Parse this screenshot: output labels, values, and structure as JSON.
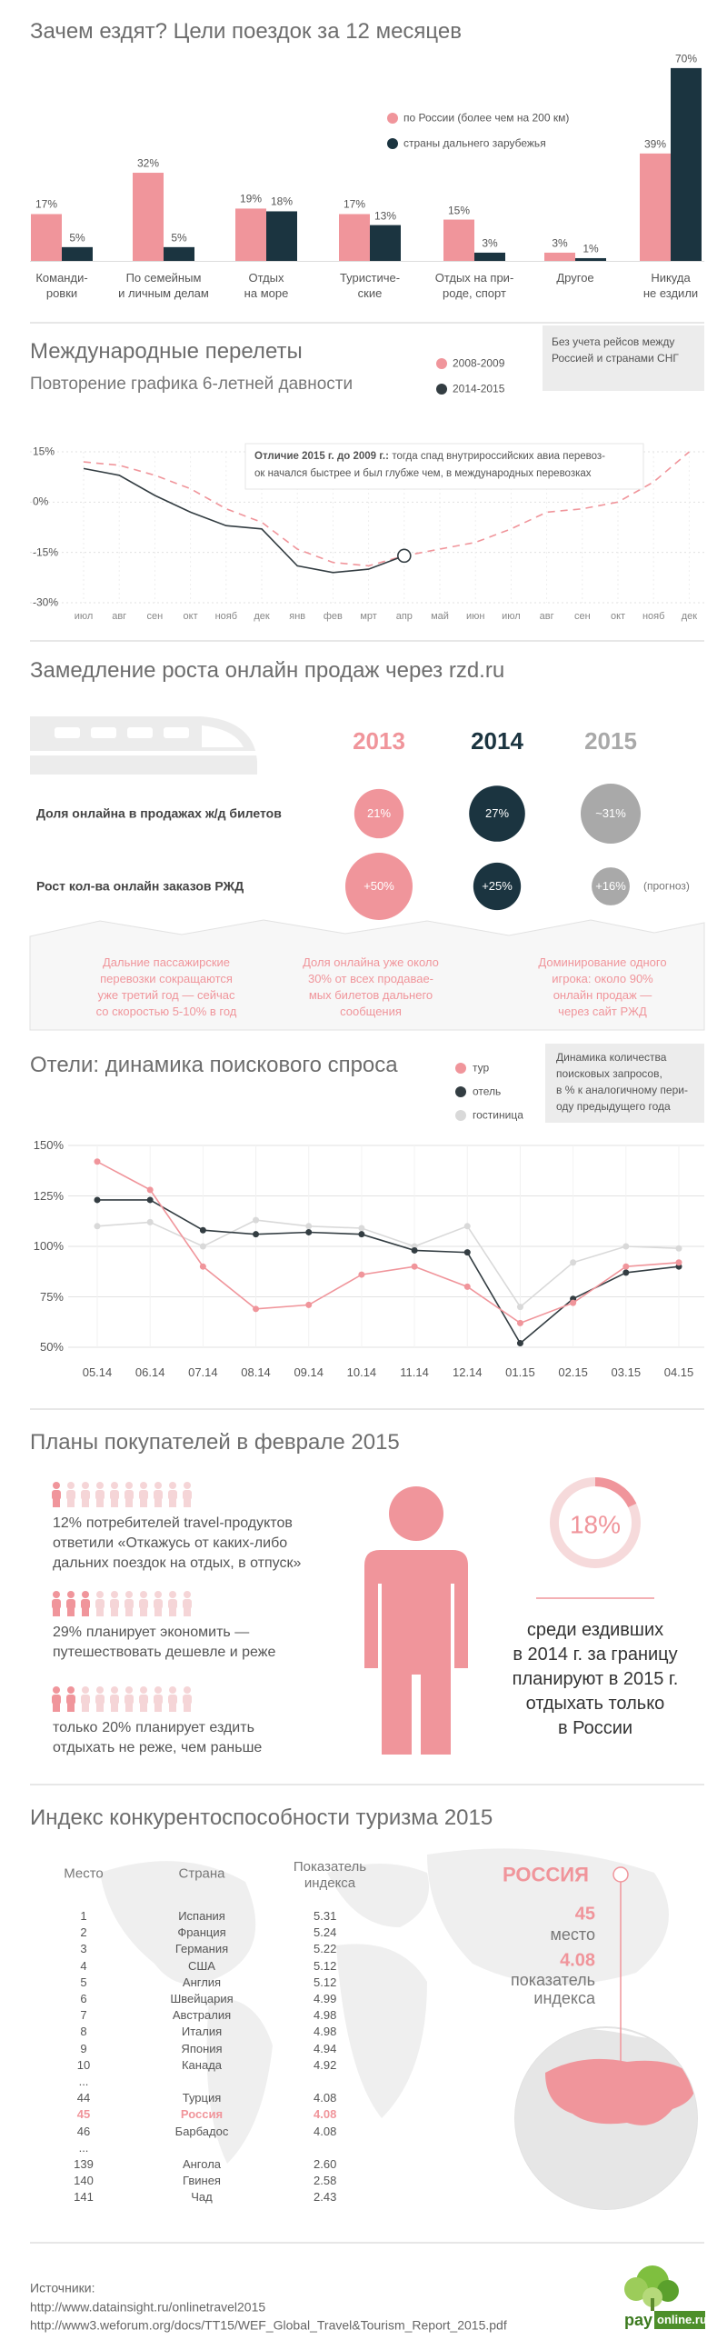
{
  "chart_data": [
    {
      "type": "bar",
      "title": "Зачем ездят? Цели поездок за 12 месяцев",
      "categories": [
        "Команди-\nровки",
        "По семейным\nи личным делам",
        "Отдых\nна море",
        "Туристиче-\nские",
        "Отдых на при-\nроде, спорт",
        "Другое",
        "Никуда\nне ездили"
      ],
      "series": [
        {
          "name": "по России (более чем на 200 км)",
          "color": "#f0959b",
          "values": [
            17,
            32,
            19,
            17,
            15,
            3,
            39
          ],
          "value_labels": [
            "17%",
            "32%",
            "19%",
            "17%",
            "15%",
            "3%",
            "39%"
          ]
        },
        {
          "name": "страны дальнего зарубежья",
          "color": "#1b3440",
          "values": [
            5,
            5,
            18,
            13,
            3,
            1,
            70
          ],
          "value_labels": [
            "5%",
            "5%",
            "18%",
            "13%",
            "3%",
            "1%",
            "70%"
          ]
        }
      ]
    },
    {
      "type": "line",
      "title": "Международные перелеты",
      "subtitle": "Повторение графика 6-летней давности",
      "note": "Без учета рейсов между\nРоссией и странами СНГ",
      "annotation_title": "Отличие 2015 г. до 2009 г.:",
      "annotation": "тогда спад внутрироссийских авиа перевоз-\nок начался быстрее и был глубже чем, в международных перевозках",
      "categories": [
        "июл",
        "авг",
        "сен",
        "окт",
        "нояб",
        "дек",
        "янв",
        "фев",
        "мрт",
        "апр",
        "май",
        "июн",
        "июл",
        "авг",
        "сен",
        "окт",
        "нояб",
        "дек"
      ],
      "series": [
        {
          "name": "2008-2009",
          "color": "#f0959b",
          "dashed": true,
          "values": [
            12,
            11,
            8,
            4,
            -2,
            -6,
            -14,
            -18,
            -19,
            -16,
            -14,
            -12,
            -8,
            -3,
            -2,
            0,
            6,
            15
          ]
        },
        {
          "name": "2014-2015",
          "color": "#333d42",
          "end_marker": true,
          "values": [
            10,
            8,
            2,
            -3,
            -7,
            -8,
            -19,
            -21,
            -20,
            -16,
            null,
            null,
            null,
            null,
            null,
            null,
            null,
            null
          ]
        }
      ],
      "ylim": [
        -30,
        15
      ],
      "yticks": [
        {
          "value": 15,
          "label": "15%"
        },
        {
          "value": 0,
          "label": "0%"
        },
        {
          "value": -15,
          "label": "-15%"
        },
        {
          "value": -30,
          "label": "-30%"
        }
      ],
      "grid": true
    },
    {
      "type": "bubble",
      "title": "Замедление роста онлайн продаж через rzd.ru",
      "categories": [
        "2013",
        "2014",
        "2015"
      ],
      "category_colors": [
        "#f0959b",
        "#1b3440",
        "#a9a9a9"
      ],
      "series": [
        {
          "name": "Доля онлайна в продажах ж/д билетов",
          "values": [
            21,
            27,
            31
          ],
          "value_labels": [
            "21%",
            "27%",
            "~31%"
          ]
        },
        {
          "name": "Рост кол-ва онлайн заказов РЖД",
          "values": [
            50,
            25,
            16
          ],
          "value_labels": [
            "+50%",
            "+25%",
            "+16%"
          ]
        }
      ],
      "forecast_label": "(прогноз)",
      "notes": [
        "Дальние пассажирские\nперевозки сокращаются\nуже третий год — сейчас\nсо скоростью 5-10% в год",
        "Доля онлайна уже около\n30% от всех продавае-\nмых билетов дальнего\nсообщения",
        "Доминирование одного\nигрока: около 90%\nонлайн продаж —\nчерез сайт РЖД"
      ]
    },
    {
      "type": "line",
      "title": "Отели: динамика поискового спроса",
      "note": "Динамика количества\nпоисковых запросов,\nв % к аналогичному пери-\nоду предыдущего года",
      "categories": [
        "05.14",
        "06.14",
        "07.14",
        "08.14",
        "09.14",
        "10.14",
        "11.14",
        "12.14",
        "01.15",
        "02.15",
        "03.15",
        "04.15"
      ],
      "series": [
        {
          "name": "тур",
          "color": "#f0959b",
          "values": [
            142,
            128,
            90,
            69,
            71,
            86,
            90,
            80,
            62,
            72,
            90,
            92
          ]
        },
        {
          "name": "отель",
          "color": "#333d42",
          "values": [
            123,
            123,
            108,
            106,
            107,
            106,
            98,
            97,
            52,
            74,
            87,
            90
          ]
        },
        {
          "name": "гостиница",
          "color": "#d9d9d9",
          "values": [
            110,
            112,
            100,
            113,
            110,
            109,
            100,
            110,
            70,
            92,
            100,
            99
          ]
        }
      ],
      "ylim": [
        50,
        150
      ],
      "yticks": [
        {
          "value": 150,
          "label": "150%"
        },
        {
          "value": 125,
          "label": "125%"
        },
        {
          "value": 100,
          "label": "100%"
        },
        {
          "value": 75,
          "label": "75%"
        },
        {
          "value": 50,
          "label": "50%"
        }
      ],
      "grid": true,
      "markers": true
    }
  ],
  "plans": {
    "title": "Планы покупателей в феврале 2015",
    "items": [
      {
        "value": 12,
        "value_label": "12%",
        "text": "потребителей travel-продуктов\nответили «Откажусь от каких-либо\nдальних поездок на отдых, в отпуск»"
      },
      {
        "value": 29,
        "value_label": "29%",
        "text": "планирует экономить —\nпутешествовать дешевле и реже"
      },
      {
        "prefix": "только",
        "value": 20,
        "value_label": "20%",
        "text": "планирует ездить\nотдыхать не реже, чем раньше"
      }
    ],
    "highlight": {
      "value": 18,
      "value_label": "18%",
      "text": "среди ездивших\nв 2014 г. за границу\nпланируют в 2015 г.\nотдыхать только\nв России"
    }
  },
  "index": {
    "title": "Индекс конкурентоспособности туризма 2015",
    "columns": [
      "Место",
      "Страна",
      "Показатель\nиндекса"
    ],
    "highlight_rank": 45,
    "rows": [
      [
        1,
        "Испания",
        "5.31"
      ],
      [
        2,
        "Франция",
        "5.24"
      ],
      [
        3,
        "Германия",
        "5.22"
      ],
      [
        4,
        "США",
        "5.12"
      ],
      [
        5,
        "Англия",
        "5.12"
      ],
      [
        6,
        "Швейцария",
        "4.99"
      ],
      [
        7,
        "Австралия",
        "4.98"
      ],
      [
        8,
        "Италия",
        "4.98"
      ],
      [
        9,
        "Япония",
        "4.94"
      ],
      [
        10,
        "Канада",
        "4.92"
      ],
      [
        "..."
      ],
      [
        44,
        "Турция",
        "4.08"
      ],
      [
        45,
        "Россия",
        "4.08"
      ],
      [
        46,
        "Барбадос",
        "4.08"
      ],
      [
        "..."
      ],
      [
        139,
        "Ангола",
        "2.60"
      ],
      [
        140,
        "Гвинея",
        "2.58"
      ],
      [
        141,
        "Чад",
        "2.43"
      ]
    ],
    "russia": {
      "name": "РОССИЯ",
      "rank": 45,
      "rank_label": "место",
      "score": "4.08",
      "score_label": "показатель\nиндекса"
    }
  },
  "sources": {
    "title": "Источники:",
    "links": [
      "http://www.datainsight.ru/onlinetravel2015",
      "http://www3.weforum.org/docs/TT15/WEF_Global_Travel&Tourism_Report_2015.pdf"
    ]
  },
  "logo": [
    "pay",
    "online.ru"
  ]
}
